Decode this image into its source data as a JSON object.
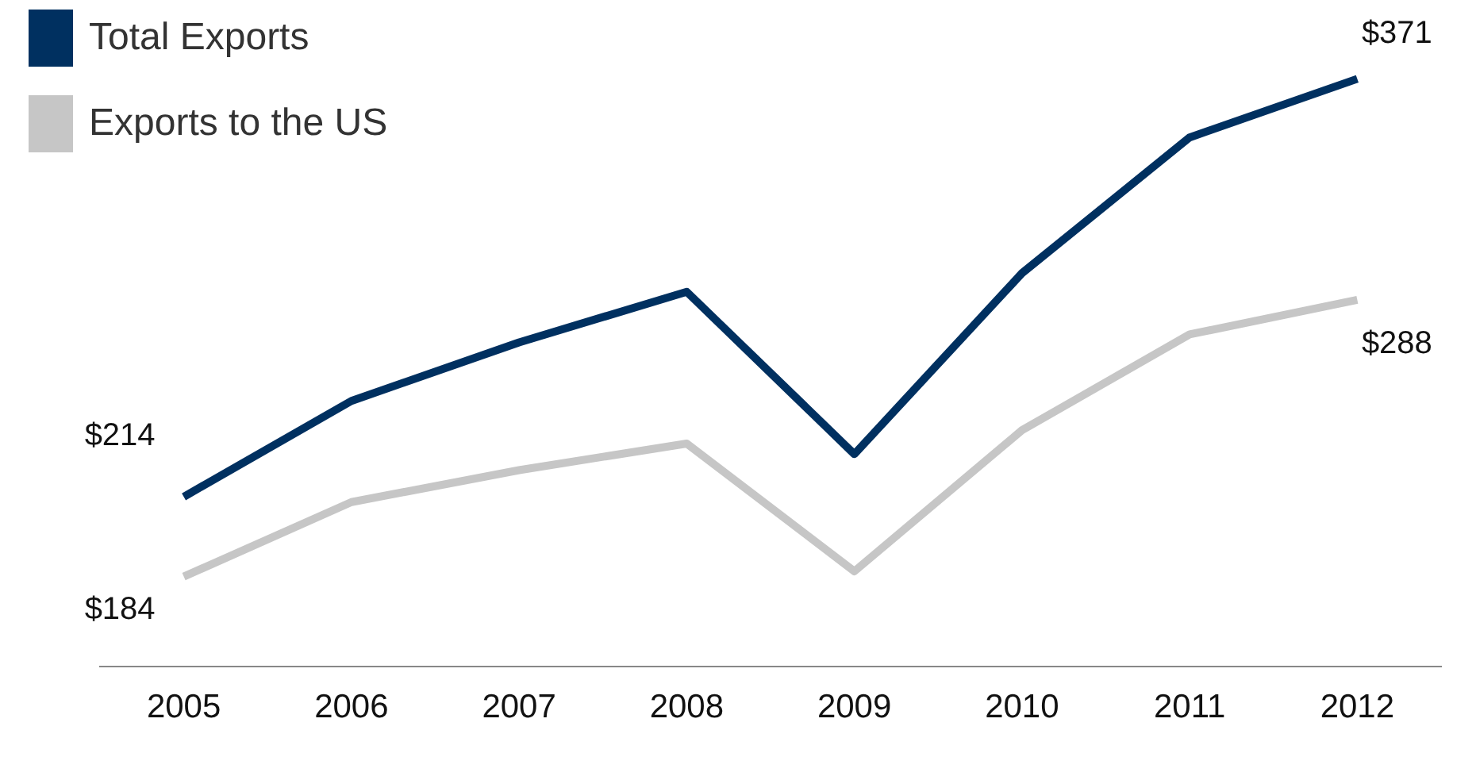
{
  "chart_data": {
    "type": "line",
    "categories": [
      "2005",
      "2006",
      "2007",
      "2008",
      "2009",
      "2010",
      "2011",
      "2012"
    ],
    "series": [
      {
        "name": "Total Exports",
        "color": "#003060",
        "values": [
          214,
          250,
          272,
          291,
          230,
          298,
          349,
          371
        ],
        "value_labels": [
          "$214",
          null,
          null,
          null,
          null,
          null,
          null,
          "$371"
        ]
      },
      {
        "name": "Exports to the US",
        "color": "#c6c6c6",
        "values": [
          184,
          212,
          224,
          234,
          186,
          239,
          275,
          288
        ],
        "value_labels": [
          "$184",
          null,
          null,
          null,
          null,
          null,
          null,
          "$288"
        ]
      }
    ],
    "legend": "top left",
    "grid": false,
    "marker": "none",
    "line_style": "solid"
  }
}
